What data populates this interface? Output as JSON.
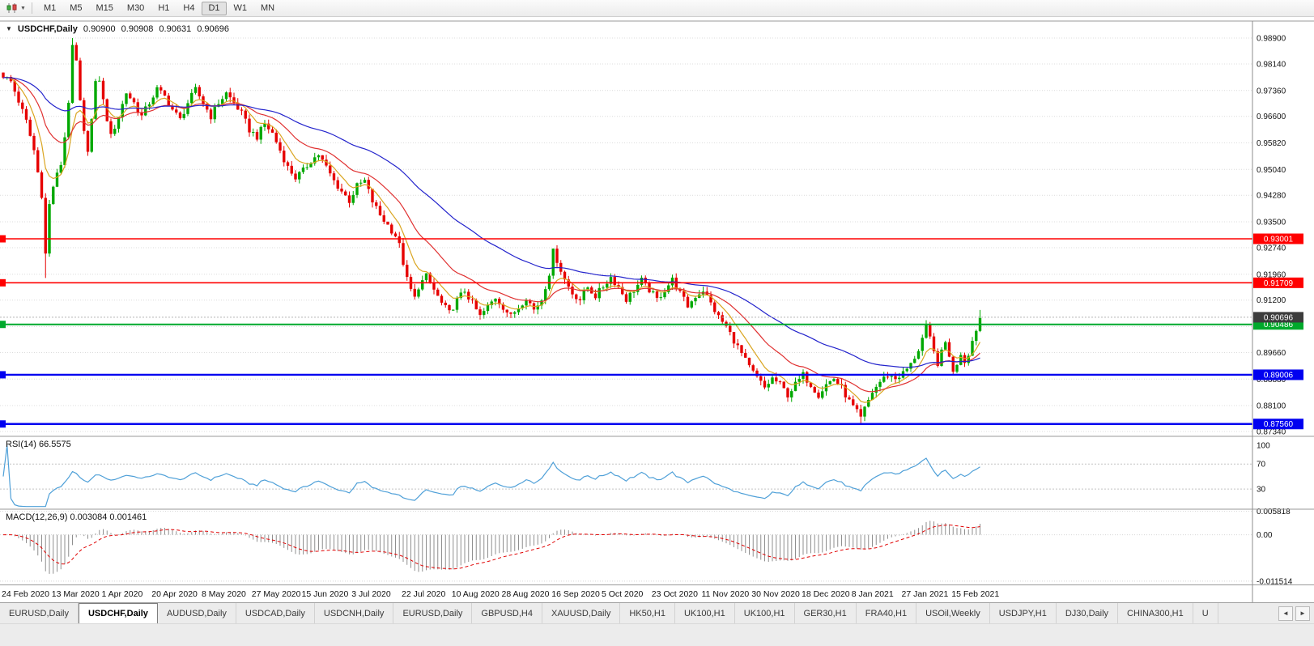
{
  "icons": {
    "collapse_triangle": "▼",
    "tab_scroll_left": "◄",
    "tab_scroll_right": "►"
  },
  "toolbar": {
    "timeframes": [
      "M1",
      "M5",
      "M15",
      "M30",
      "H1",
      "H4",
      "D1",
      "W1",
      "MN"
    ],
    "active": "D1"
  },
  "chart": {
    "title": {
      "symbol": "USDCHF,Daily",
      "open": "0.90900",
      "high": "0.90908",
      "low": "0.90631",
      "close": "0.90696"
    }
  },
  "chart_data": {
    "type": "candlestick",
    "symbol": "USDCHF",
    "timeframe": "Daily",
    "days": 255,
    "colors": {
      "up": "#00A800",
      "down": "#E60000",
      "grid": "#DCDCDC",
      "axis_text": "#111111",
      "background": "#FFFFFF",
      "current_dotted": "#B4B4B4"
    },
    "y_range": [
      0.87221,
      0.99376
    ],
    "y_ticks": [
      {
        "v": 0.989,
        "label": "0.98900"
      },
      {
        "v": 0.9814,
        "label": "0.98140"
      },
      {
        "v": 0.9736,
        "label": "0.97360"
      },
      {
        "v": 0.966,
        "label": "0.96600"
      },
      {
        "v": 0.9582,
        "label": "0.95820"
      },
      {
        "v": 0.9504,
        "label": "0.95040"
      },
      {
        "v": 0.9428,
        "label": "0.94280"
      },
      {
        "v": 0.935,
        "label": "0.93500"
      },
      {
        "v": 0.9274,
        "label": "0.92740"
      },
      {
        "v": 0.9196,
        "label": "0.91960"
      },
      {
        "v": 0.912,
        "label": "0.91200"
      },
      {
        "v": 0.9042,
        "label": "0.90420"
      },
      {
        "v": 0.8966,
        "label": "0.89660"
      },
      {
        "v": 0.8888,
        "label": "0.88880"
      },
      {
        "v": 0.881,
        "label": "0.88100"
      },
      {
        "v": 0.8734,
        "label": "0.87340"
      }
    ],
    "x_ticks": [
      {
        "day": 0,
        "label": "24 Feb 2020"
      },
      {
        "day": 13,
        "label": "13 Mar 2020"
      },
      {
        "day": 26,
        "label": "1 Apr 2020"
      },
      {
        "day": 39,
        "label": "20 Apr 2020"
      },
      {
        "day": 52,
        "label": "8 May 2020"
      },
      {
        "day": 65,
        "label": "27 May 2020"
      },
      {
        "day": 78,
        "label": "15 Jun 2020"
      },
      {
        "day": 91,
        "label": "3 Jul 2020"
      },
      {
        "day": 104,
        "label": "22 Jul 2020"
      },
      {
        "day": 117,
        "label": "10 Aug 2020"
      },
      {
        "day": 130,
        "label": "28 Aug 2020"
      },
      {
        "day": 143,
        "label": "16 Sep 2020"
      },
      {
        "day": 156,
        "label": "5 Oct 2020"
      },
      {
        "day": 169,
        "label": "23 Oct 2020"
      },
      {
        "day": 182,
        "label": "11 Nov 2020"
      },
      {
        "day": 195,
        "label": "30 Nov 2020"
      },
      {
        "day": 208,
        "label": "18 Dec 2020"
      },
      {
        "day": 221,
        "label": "8 Jan 2021"
      },
      {
        "day": 234,
        "label": "27 Jan 2021"
      },
      {
        "day": 247,
        "label": "15 Feb 2021"
      }
    ],
    "hlines": [
      {
        "value": 0.93001,
        "label": "0.93001",
        "color": "#FF0000",
        "width": 1.6
      },
      {
        "value": 0.91709,
        "label": "0.91709",
        "color": "#FF0000",
        "width": 1.6
      },
      {
        "value": 0.90486,
        "label": "0.90486",
        "color": "#00A92C",
        "width": 2
      },
      {
        "value": 0.89006,
        "label": "0.89006",
        "color": "#0000F0",
        "width": 2.4
      },
      {
        "value": 0.8756,
        "label": "0.87560",
        "color": "#0000F0",
        "width": 2.4
      }
    ],
    "current_price": {
      "value": 0.90696,
      "label": "0.90696",
      "box_color": "#3C3C3C"
    },
    "moving_averages": [
      {
        "name": "fast",
        "period": 8,
        "color": "#DAA520"
      },
      {
        "name": "medium",
        "period": 21,
        "color": "#E03131"
      },
      {
        "name": "slow",
        "period": 55,
        "color": "#2323CC"
      }
    ],
    "close_anchors": [
      [
        0,
        0.978
      ],
      [
        2,
        0.9762
      ],
      [
        4,
        0.9705
      ],
      [
        6,
        0.9645
      ],
      [
        8,
        0.956
      ],
      [
        10,
        0.943
      ],
      [
        11,
        0.9255
      ],
      [
        12,
        0.94
      ],
      [
        13,
        0.9455
      ],
      [
        15,
        0.952
      ],
      [
        16,
        0.96
      ],
      [
        17,
        0.9705
      ],
      [
        18,
        0.986
      ],
      [
        19,
        0.982
      ],
      [
        20,
        0.97
      ],
      [
        21,
        0.961
      ],
      [
        22,
        0.9565
      ],
      [
        23,
        0.965
      ],
      [
        24,
        0.9755
      ],
      [
        25,
        0.977
      ],
      [
        26,
        0.9705
      ],
      [
        28,
        0.96
      ],
      [
        30,
        0.966
      ],
      [
        32,
        0.973
      ],
      [
        34,
        0.97
      ],
      [
        36,
        0.966
      ],
      [
        38,
        0.97
      ],
      [
        40,
        0.974
      ],
      [
        42,
        0.9718
      ],
      [
        44,
        0.968
      ],
      [
        46,
        0.965
      ],
      [
        48,
        0.97
      ],
      [
        50,
        0.9738
      ],
      [
        52,
        0.97
      ],
      [
        54,
        0.966
      ],
      [
        56,
        0.97
      ],
      [
        58,
        0.9728
      ],
      [
        60,
        0.97
      ],
      [
        62,
        0.9668
      ],
      [
        64,
        0.962
      ],
      [
        66,
        0.96
      ],
      [
        68,
        0.9638
      ],
      [
        70,
        0.961
      ],
      [
        72,
        0.956
      ],
      [
        74,
        0.951
      ],
      [
        76,
        0.948
      ],
      [
        78,
        0.95
      ],
      [
        80,
        0.953
      ],
      [
        82,
        0.9548
      ],
      [
        84,
        0.951
      ],
      [
        86,
        0.947
      ],
      [
        88,
        0.944
      ],
      [
        90,
        0.9412
      ],
      [
        92,
        0.9455
      ],
      [
        94,
        0.947
      ],
      [
        96,
        0.941
      ],
      [
        98,
        0.937
      ],
      [
        100,
        0.934
      ],
      [
        102,
        0.931
      ],
      [
        103,
        0.928
      ],
      [
        104,
        0.923
      ],
      [
        105,
        0.918
      ],
      [
        106,
        0.915
      ],
      [
        107,
        0.9125
      ],
      [
        108,
        0.916
      ],
      [
        110,
        0.919
      ],
      [
        112,
        0.915
      ],
      [
        114,
        0.911
      ],
      [
        116,
        0.9082
      ],
      [
        118,
        0.912
      ],
      [
        120,
        0.9148
      ],
      [
        122,
        0.911
      ],
      [
        124,
        0.9072
      ],
      [
        126,
        0.91
      ],
      [
        128,
        0.9128
      ],
      [
        130,
        0.91
      ],
      [
        132,
        0.9072
      ],
      [
        134,
        0.91
      ],
      [
        136,
        0.9128
      ],
      [
        138,
        0.9092
      ],
      [
        140,
        0.9122
      ],
      [
        142,
        0.92
      ],
      [
        143,
        0.9262
      ],
      [
        144,
        0.9238
      ],
      [
        146,
        0.918
      ],
      [
        148,
        0.914
      ],
      [
        150,
        0.9122
      ],
      [
        152,
        0.9158
      ],
      [
        154,
        0.9132
      ],
      [
        156,
        0.916
      ],
      [
        158,
        0.9188
      ],
      [
        160,
        0.9158
      ],
      [
        162,
        0.9122
      ],
      [
        164,
        0.915
      ],
      [
        166,
        0.9178
      ],
      [
        168,
        0.915
      ],
      [
        170,
        0.9122
      ],
      [
        172,
        0.915
      ],
      [
        174,
        0.918
      ],
      [
        176,
        0.914
      ],
      [
        178,
        0.9102
      ],
      [
        180,
        0.9132
      ],
      [
        182,
        0.915
      ],
      [
        184,
        0.911
      ],
      [
        186,
        0.907
      ],
      [
        188,
        0.9042
      ],
      [
        190,
        0.9002
      ],
      [
        192,
        0.8962
      ],
      [
        194,
        0.8922
      ],
      [
        196,
        0.8892
      ],
      [
        198,
        0.8862
      ],
      [
        200,
        0.889
      ],
      [
        202,
        0.8872
      ],
      [
        204,
        0.8842
      ],
      [
        206,
        0.8872
      ],
      [
        208,
        0.89
      ],
      [
        210,
        0.8872
      ],
      [
        212,
        0.8842
      ],
      [
        214,
        0.8872
      ],
      [
        216,
        0.889
      ],
      [
        218,
        0.8862
      ],
      [
        220,
        0.8822
      ],
      [
        222,
        0.879
      ],
      [
        223,
        0.8772
      ],
      [
        224,
        0.88
      ],
      [
        226,
        0.885
      ],
      [
        228,
        0.888
      ],
      [
        230,
        0.89
      ],
      [
        232,
        0.889
      ],
      [
        234,
        0.8905
      ],
      [
        236,
        0.893
      ],
      [
        238,
        0.8975
      ],
      [
        240,
        0.904
      ],
      [
        241,
        0.9005
      ],
      [
        242,
        0.8965
      ],
      [
        243,
        0.8935
      ],
      [
        244,
        0.8965
      ],
      [
        245,
        0.8995
      ],
      [
        246,
        0.896
      ],
      [
        247,
        0.8905
      ],
      [
        248,
        0.8935
      ],
      [
        249,
        0.8965
      ],
      [
        250,
        0.894
      ],
      [
        251,
        0.8965
      ],
      [
        252,
        0.9
      ],
      [
        253,
        0.9035
      ],
      [
        254,
        0.9068
      ]
    ],
    "wick_extremes": [
      {
        "day": 11,
        "low": 0.9185
      },
      {
        "day": 18,
        "high": 0.989
      },
      {
        "day": 223,
        "low": 0.8756
      },
      {
        "day": 254,
        "high": 0.9091
      }
    ],
    "rsi": {
      "label": "RSI(14) 66.5575",
      "period": 14,
      "value": 66.5575,
      "color": "#4FA0D8",
      "ylim": [
        -1,
        113
      ],
      "levels": [
        {
          "v": 100,
          "label": "100",
          "line": false
        },
        {
          "v": 70,
          "label": "70",
          "line": true
        },
        {
          "v": 30,
          "label": "30",
          "line": true
        }
      ]
    },
    "macd": {
      "label": "MACD(12,26,9) 0.003084 0.001461",
      "fast": 12,
      "slow": 26,
      "signal_period": 9,
      "macd_value": 0.003084,
      "signal_value": 0.001461,
      "hist_color": "#8F8F8F",
      "signal_color": "#E00000",
      "ylim": [
        -0.01235,
        0.00615
      ],
      "y_ticks": [
        {
          "v": 0.005818,
          "label": "0.005818"
        },
        {
          "v": 0,
          "label": "0.00"
        },
        {
          "v": -0.011514,
          "label": "-0.011514"
        }
      ]
    }
  },
  "tabbar": {
    "active_index": 1,
    "items": [
      "EURUSD,Daily",
      "USDCHF,Daily",
      "AUDUSD,Daily",
      "USDCAD,Daily",
      "USDCNH,Daily",
      "EURUSD,Daily",
      "GBPUSD,H4",
      "XAUUSD,Daily",
      "HK50,H1",
      "UK100,H1",
      "UK100,H1",
      "GER30,H1",
      "FRA40,H1",
      "USOil,Weekly",
      "USDJPY,H1",
      "DJ30,Daily",
      "CHINA300,H1",
      "U"
    ]
  }
}
